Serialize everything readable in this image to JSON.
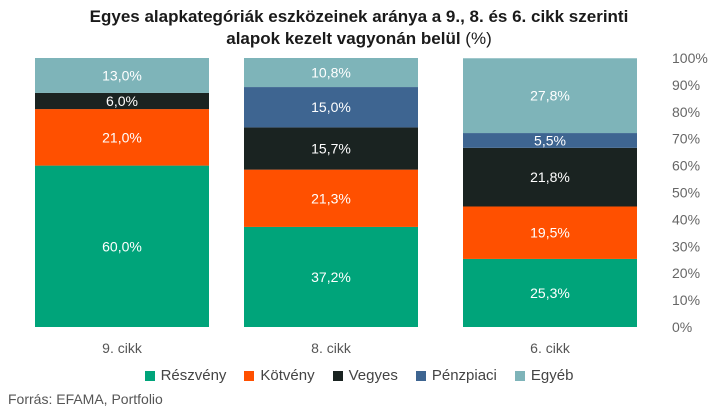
{
  "title_line1": "Egyes alapkategóriák eszközeinek aránya a 9., 8. és 6. cikk szerinti",
  "title_line2": "alapok kezelt vagyonán belül",
  "title_unit": "(%)",
  "source": "Forrás: EFAMA, Portfolio",
  "chart_data": {
    "type": "bar",
    "stacked": true,
    "categories": [
      "9. cikk",
      "8. cikk",
      "6. cikk"
    ],
    "series": [
      {
        "name": "Részvény",
        "color": "#00a47a",
        "values": [
          60.0,
          37.2,
          25.3
        ],
        "labels": [
          "60,0%",
          "37,2%",
          "25,3%"
        ]
      },
      {
        "name": "Kötvény",
        "color": "#ff5000",
        "values": [
          21.0,
          21.3,
          19.5
        ],
        "labels": [
          "21,0%",
          "21,3%",
          "19,5%"
        ]
      },
      {
        "name": "Vegyes",
        "color": "#1a2321",
        "values": [
          6.0,
          15.7,
          21.8
        ],
        "labels": [
          "6,0%",
          "15,7%",
          "21,8%"
        ]
      },
      {
        "name": "Pénzpiaci",
        "color": "#3e6591",
        "values": [
          0.0,
          15.0,
          5.5
        ],
        "labels": [
          "",
          "15,0%",
          "5,5%"
        ]
      },
      {
        "name": "Egyéb",
        "color": "#7eb4b9",
        "values": [
          13.0,
          10.8,
          27.8
        ],
        "labels": [
          "13,0%",
          "10,8%",
          "27,8%"
        ]
      }
    ],
    "y_ticks": [
      "0%",
      "10%",
      "20%",
      "30%",
      "40%",
      "50%",
      "60%",
      "70%",
      "80%",
      "90%",
      "100%"
    ],
    "ylim": [
      0,
      100
    ],
    "legend_position": "bottom",
    "grid": false
  }
}
